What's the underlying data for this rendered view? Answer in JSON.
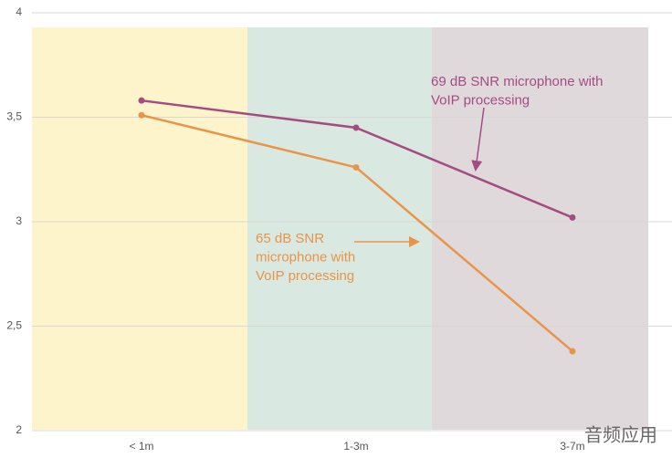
{
  "chart_data": {
    "type": "line",
    "categories": [
      "< 1m",
      "1-3m",
      "3-7m"
    ],
    "series": [
      {
        "color": "#a44c82",
        "values": [
          3.58,
          3.45,
          3.02
        ]
      },
      {
        "color": "#ea9448",
        "values": [
          3.51,
          3.26,
          2.38
        ]
      }
    ],
    "ylim": [
      2,
      4
    ],
    "yticks": [
      2,
      {
        "value": 2.5,
        "label": "2,5"
      },
      3,
      {
        "value": 3.5,
        "label": "3,5"
      },
      4
    ],
    "grid": true,
    "annotations": [
      {
        "lines": [
          "69 dB SNR microphone with",
          "VoIP processing"
        ],
        "color": "#a44c82"
      },
      {
        "lines": [
          "65 dB SNR",
          "microphone with",
          "VoIP processing"
        ],
        "color": "#ea9448"
      }
    ],
    "watermark": "音频应用"
  }
}
